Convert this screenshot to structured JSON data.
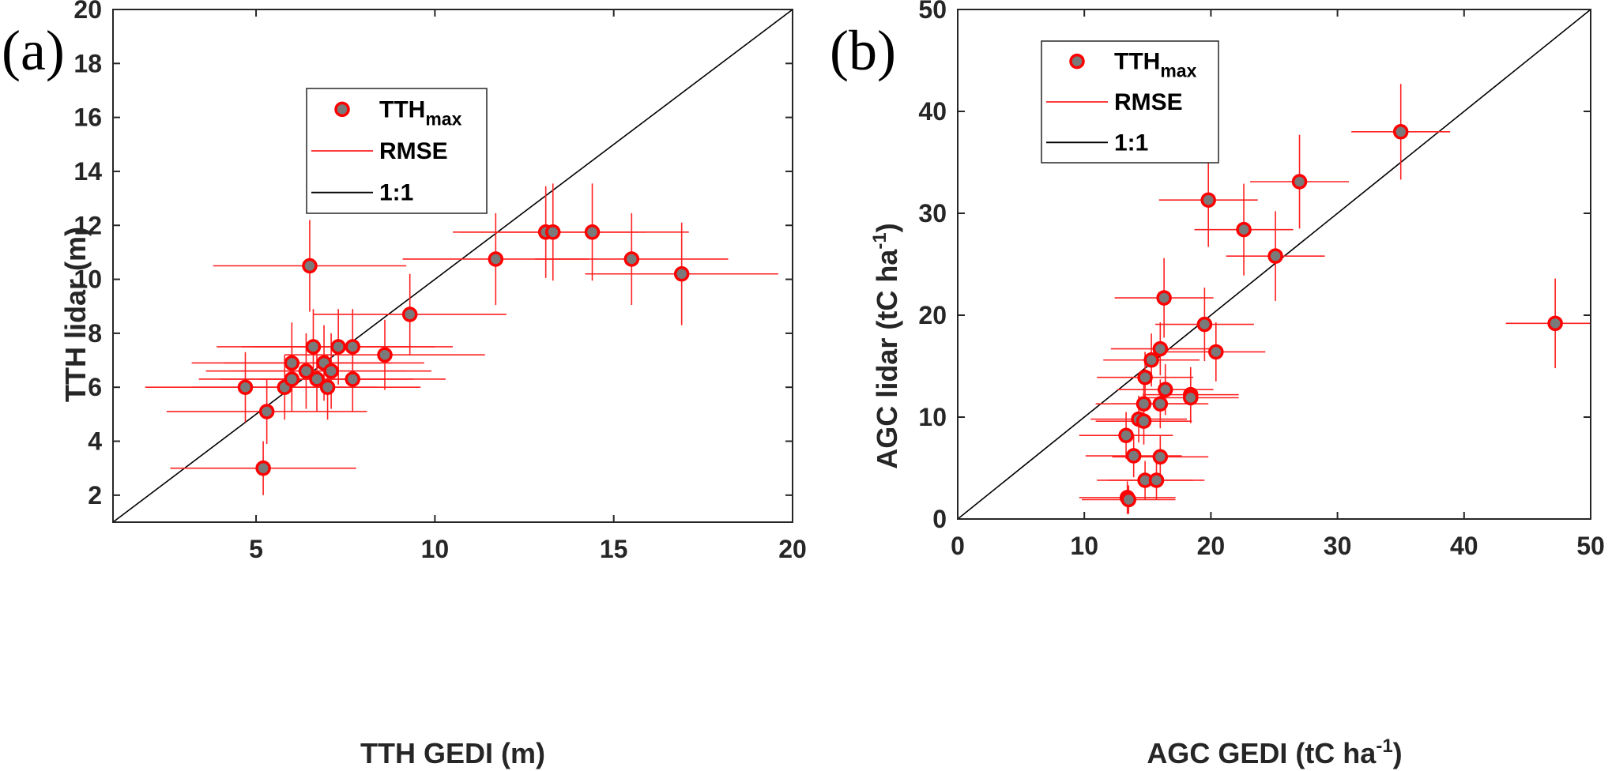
{
  "colors": {
    "marker_fill": "#7a7a7a",
    "marker_edge": "#ff0000",
    "errorbar": "#ff2020",
    "one_to_one": "#000000",
    "axis": "#262626"
  },
  "chart_data": [
    {
      "panel": "(a)",
      "type": "scatter",
      "xlabel": "TTH GEDI (m)",
      "ylabel": "TTH lidar (m)",
      "xlim": [
        1,
        20
      ],
      "ylim": [
        1,
        20
      ],
      "xticks": [
        5,
        10,
        15,
        20
      ],
      "yticks": [
        2,
        4,
        6,
        8,
        10,
        12,
        14,
        16,
        18,
        20
      ],
      "legend": {
        "placement": "upper-middle",
        "entries": [
          {
            "main": "TTH",
            "sub": "max"
          },
          {
            "main": "RMSE",
            "sub": ""
          },
          {
            "main": "1:1",
            "sub": ""
          }
        ]
      },
      "one_to_one": true,
      "points": [
        {
          "x": 4.7,
          "y": 6.0,
          "xerr": 2.8,
          "yerr": 1.3
        },
        {
          "x": 5.2,
          "y": 3.0,
          "xerr": 2.6,
          "yerr": 1.0
        },
        {
          "x": 5.3,
          "y": 5.1,
          "xerr": 2.8,
          "yerr": 1.2
        },
        {
          "x": 5.8,
          "y": 6.0,
          "xerr": 2.6,
          "yerr": 1.2
        },
        {
          "x": 6.0,
          "y": 6.3,
          "xerr": 2.6,
          "yerr": 1.2
        },
        {
          "x": 6.0,
          "y": 6.9,
          "xerr": 2.8,
          "yerr": 1.5
        },
        {
          "x": 6.4,
          "y": 6.6,
          "xerr": 2.8,
          "yerr": 1.4
        },
        {
          "x": 6.5,
          "y": 10.5,
          "xerr": 2.7,
          "yerr": 1.7
        },
        {
          "x": 6.6,
          "y": 7.5,
          "xerr": 2.7,
          "yerr": 1.4
        },
        {
          "x": 6.7,
          "y": 6.3,
          "xerr": 2.7,
          "yerr": 1.2
        },
        {
          "x": 6.9,
          "y": 6.9,
          "xerr": 2.8,
          "yerr": 1.4
        },
        {
          "x": 7.0,
          "y": 6.0,
          "xerr": 2.6,
          "yerr": 1.2
        },
        {
          "x": 7.1,
          "y": 6.6,
          "xerr": 2.8,
          "yerr": 1.4
        },
        {
          "x": 7.3,
          "y": 7.5,
          "xerr": 2.7,
          "yerr": 1.4
        },
        {
          "x": 7.7,
          "y": 7.5,
          "xerr": 2.8,
          "yerr": 1.4
        },
        {
          "x": 7.7,
          "y": 6.3,
          "xerr": 2.6,
          "yerr": 1.2
        },
        {
          "x": 8.6,
          "y": 7.2,
          "xerr": 2.8,
          "yerr": 1.3
        },
        {
          "x": 9.3,
          "y": 8.7,
          "xerr": 2.7,
          "yerr": 1.5
        },
        {
          "x": 11.7,
          "y": 10.75,
          "xerr": 2.6,
          "yerr": 1.7
        },
        {
          "x": 13.1,
          "y": 11.75,
          "xerr": 2.6,
          "yerr": 1.7
        },
        {
          "x": 13.3,
          "y": 11.75,
          "xerr": 2.6,
          "yerr": 1.8
        },
        {
          "x": 14.4,
          "y": 11.75,
          "xerr": 2.7,
          "yerr": 1.8
        },
        {
          "x": 15.5,
          "y": 10.75,
          "xerr": 2.7,
          "yerr": 1.7
        },
        {
          "x": 16.9,
          "y": 10.2,
          "xerr": 2.7,
          "yerr": 1.9
        }
      ]
    },
    {
      "panel": "(b)",
      "type": "scatter",
      "xlabel_main": "AGC GEDI (tC ha",
      "xlabel_sup": "-1",
      "xlabel_end": ")",
      "ylabel_main": "AGC lidar (tC ha",
      "ylabel_sup": "-1",
      "ylabel_end": ")",
      "xlim": [
        0,
        50
      ],
      "ylim": [
        0,
        50
      ],
      "xticks": [
        0,
        10,
        20,
        30,
        40,
        50
      ],
      "yticks": [
        0,
        10,
        20,
        30,
        40,
        50
      ],
      "legend": {
        "placement": "top-left",
        "entries": [
          {
            "main": "TTH",
            "sub": "max"
          },
          {
            "main": "RMSE",
            "sub": ""
          },
          {
            "main": "1:1",
            "sub": ""
          }
        ]
      },
      "one_to_one": true,
      "points": [
        {
          "x": 13.4,
          "y": 2.1,
          "xerr": 3.8,
          "yerr": 1.6
        },
        {
          "x": 13.5,
          "y": 1.9,
          "xerr": 3.7,
          "yerr": 1.4
        },
        {
          "x": 13.3,
          "y": 8.2,
          "xerr": 3.7,
          "yerr": 2.3
        },
        {
          "x": 13.9,
          "y": 6.2,
          "xerr": 3.8,
          "yerr": 2.1
        },
        {
          "x": 14.3,
          "y": 9.8,
          "xerr": 3.8,
          "yerr": 2.3
        },
        {
          "x": 14.7,
          "y": 9.6,
          "xerr": 3.8,
          "yerr": 2.3
        },
        {
          "x": 14.7,
          "y": 11.3,
          "xerr": 3.8,
          "yerr": 2.4
        },
        {
          "x": 14.8,
          "y": 3.8,
          "xerr": 3.8,
          "yerr": 1.9
        },
        {
          "x": 14.8,
          "y": 13.9,
          "xerr": 3.8,
          "yerr": 2.5
        },
        {
          "x": 15.3,
          "y": 15.6,
          "xerr": 3.8,
          "yerr": 2.6
        },
        {
          "x": 15.7,
          "y": 3.8,
          "xerr": 3.8,
          "yerr": 1.9
        },
        {
          "x": 16.0,
          "y": 6.1,
          "xerr": 3.8,
          "yerr": 2.1
        },
        {
          "x": 16.0,
          "y": 11.3,
          "xerr": 3.8,
          "yerr": 2.4
        },
        {
          "x": 16.0,
          "y": 16.7,
          "xerr": 3.9,
          "yerr": 2.6
        },
        {
          "x": 16.3,
          "y": 21.7,
          "xerr": 3.9,
          "yerr": 3.9
        },
        {
          "x": 16.4,
          "y": 12.7,
          "xerr": 3.8,
          "yerr": 2.5
        },
        {
          "x": 18.4,
          "y": 12.2,
          "xerr": 3.8,
          "yerr": 2.7
        },
        {
          "x": 18.4,
          "y": 11.9,
          "xerr": 3.8,
          "yerr": 2.5
        },
        {
          "x": 19.5,
          "y": 19.1,
          "xerr": 3.9,
          "yerr": 3.6
        },
        {
          "x": 20.4,
          "y": 16.4,
          "xerr": 3.9,
          "yerr": 2.9
        },
        {
          "x": 19.8,
          "y": 31.3,
          "xerr": 3.9,
          "yerr": 4.6
        },
        {
          "x": 22.6,
          "y": 28.4,
          "xerr": 3.9,
          "yerr": 4.5
        },
        {
          "x": 25.1,
          "y": 25.8,
          "xerr": 3.9,
          "yerr": 4.4
        },
        {
          "x": 27.0,
          "y": 33.1,
          "xerr": 3.9,
          "yerr": 4.6
        },
        {
          "x": 35.0,
          "y": 38.0,
          "xerr": 3.9,
          "yerr": 4.7
        },
        {
          "x": 47.2,
          "y": 19.2,
          "xerr": 3.9,
          "yerr": 4.4
        }
      ]
    }
  ]
}
